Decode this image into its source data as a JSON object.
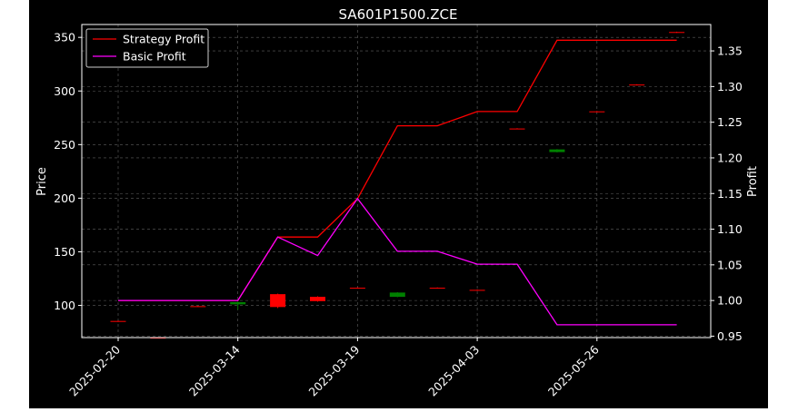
{
  "chart_data": {
    "type": "candlestick",
    "title": "SA601P1500.ZCE",
    "xlabel": "",
    "ylabel": "Price",
    "y2label": "Profit",
    "ylim": [
      70,
      362
    ],
    "y2lim": [
      0.948,
      1.387
    ],
    "yticks": [
      100,
      150,
      200,
      250,
      300,
      350
    ],
    "y2ticks": [
      0.95,
      1.0,
      1.05,
      1.1,
      1.15,
      1.2,
      1.25,
      1.3,
      1.35
    ],
    "xtick_labels": [
      "2025-02-20",
      "2025-03-14",
      "2025-03-19",
      "2025-04-03",
      "2025-05-26"
    ],
    "xtick_index": [
      0,
      3,
      6,
      9,
      12
    ],
    "grid": true,
    "legend_position": "upper-left",
    "colors": {
      "background": "#000000",
      "up": "#008000",
      "down": "#ff0000",
      "strategy": "#ff0000",
      "basic": "#ff00ff",
      "grid": "#b0b0b0",
      "text": "#ffffff"
    },
    "candles": [
      {
        "open": 85.5,
        "close": 85.0,
        "high": 85.8,
        "low": 84.7
      },
      {
        "open": 70.0,
        "close": 69.5,
        "high": 70.3,
        "low": 69.2
      },
      {
        "open": 99.3,
        "close": 99.0,
        "high": 99.6,
        "low": 98.7
      },
      {
        "open": 101.0,
        "close": 103.0,
        "high": 103.5,
        "low": 96.0
      },
      {
        "open": 110.5,
        "close": 98.5,
        "high": 111.0,
        "low": 97.5
      },
      {
        "open": 108.0,
        "close": 104.0,
        "high": 108.5,
        "low": 103.5
      },
      {
        "open": 116.5,
        "close": 116.0,
        "high": 116.8,
        "low": 115.7
      },
      {
        "open": 108.0,
        "close": 112.0,
        "high": 112.3,
        "low": 107.7
      },
      {
        "open": 116.5,
        "close": 116.0,
        "high": 116.8,
        "low": 115.7
      },
      {
        "open": 114.5,
        "close": 114.0,
        "high": 114.8,
        "low": 113.7
      },
      {
        "open": 265.0,
        "close": 264.5,
        "high": 265.3,
        "low": 264.2
      },
      {
        "open": 243.0,
        "close": 245.5,
        "high": 245.8,
        "low": 242.7
      },
      {
        "open": 281.0,
        "close": 280.5,
        "high": 281.3,
        "low": 280.2
      },
      {
        "open": 306.0,
        "close": 305.5,
        "high": 306.3,
        "low": 305.2
      },
      {
        "open": 355.0,
        "close": 354.5,
        "high": 355.3,
        "low": 354.2
      }
    ],
    "series": [
      {
        "name": "Strategy Profit",
        "color": "#ff0000",
        "values": [
          1.0,
          1.0,
          1.0,
          1.0,
          1.089,
          1.089,
          1.143,
          1.245,
          1.245,
          1.265,
          1.265,
          1.365,
          1.365,
          1.365,
          1.365
        ]
      },
      {
        "name": "Basic Profit",
        "color": "#ff00ff",
        "values": [
          1.0,
          1.0,
          1.0,
          1.0,
          1.089,
          1.063,
          1.143,
          1.069,
          1.069,
          1.051,
          1.051,
          0.966,
          0.966,
          0.966,
          0.966
        ]
      }
    ]
  }
}
